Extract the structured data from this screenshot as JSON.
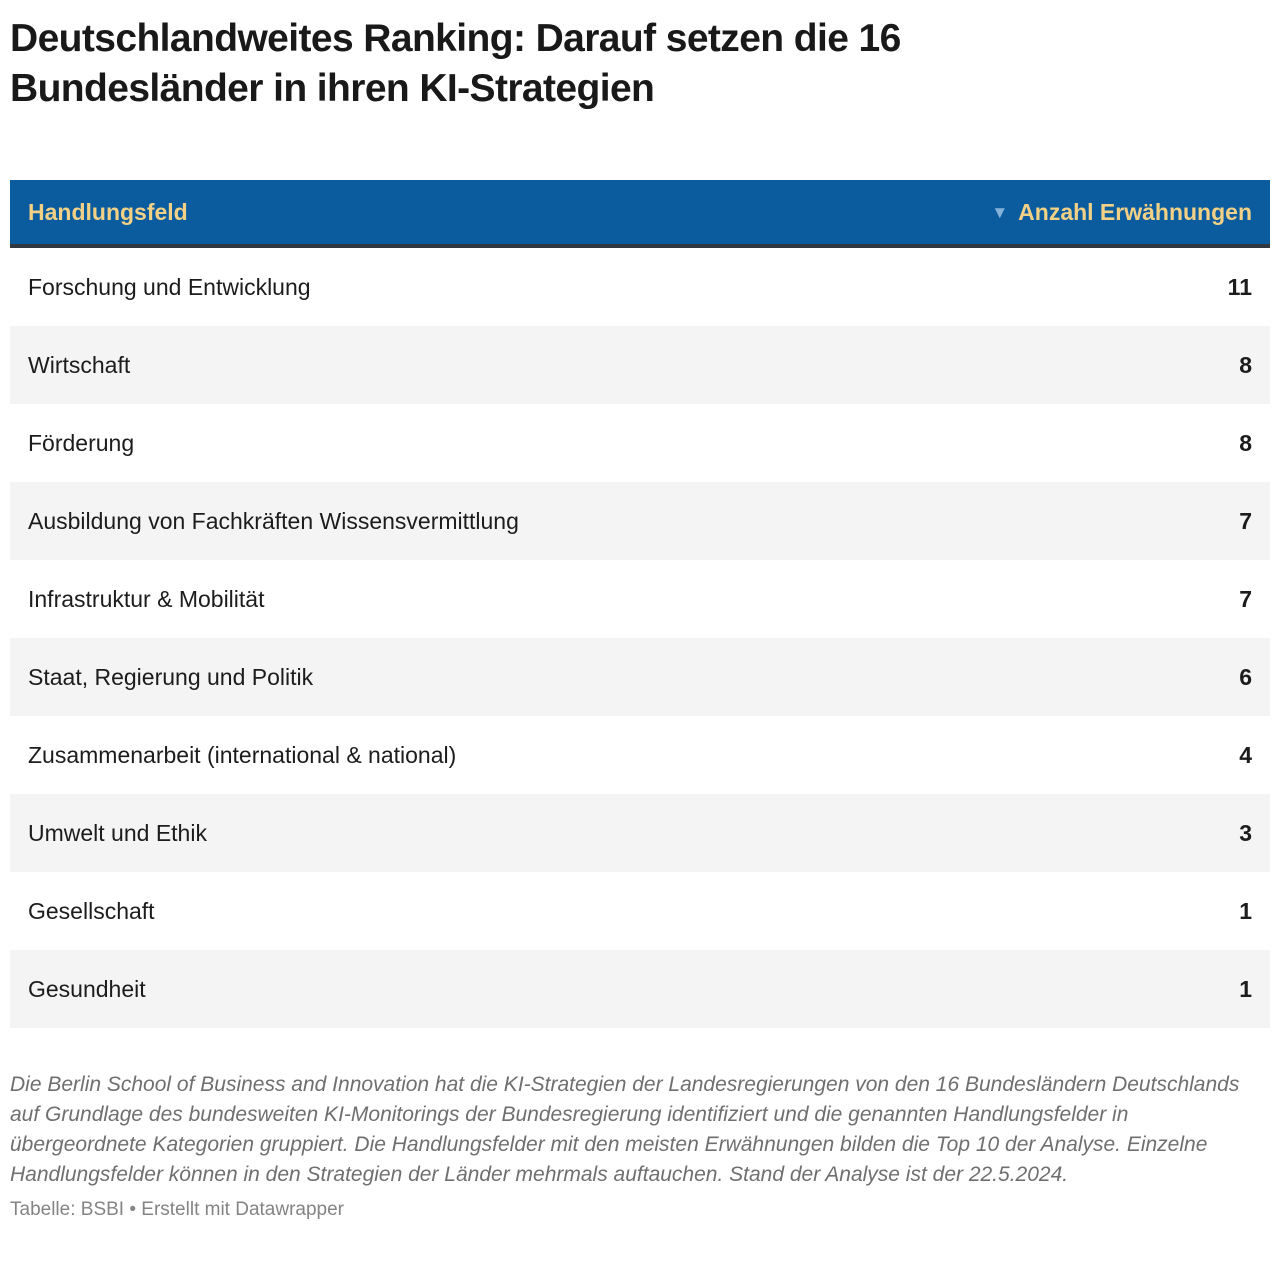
{
  "page": {
    "title": "Deutschlandweites Ranking: Darauf setzen die 16 Bundesländer in ihren KI-Strategien"
  },
  "table": {
    "header": {
      "column_field": "Handlungsfeld",
      "column_count": "Anzahl Erwähnungen",
      "sort_icon": "▼",
      "sort_direction": "descending"
    },
    "rows": [
      {
        "label": "Forschung und Entwicklung",
        "value": "11"
      },
      {
        "label": "Wirtschaft",
        "value": "8"
      },
      {
        "label": "Förderung",
        "value": "8"
      },
      {
        "label": "Ausbildung von Fachkräften Wissensvermittlung",
        "value": "7"
      },
      {
        "label": "Infrastruktur & Mobilität",
        "value": "7"
      },
      {
        "label": "Staat, Regierung und Politik",
        "value": "6"
      },
      {
        "label": "Zusammenarbeit (international & national)",
        "value": "4"
      },
      {
        "label": "Umwelt und Ethik",
        "value": "3"
      },
      {
        "label": "Gesellschaft",
        "value": "1"
      },
      {
        "label": "Gesundheit",
        "value": "1"
      }
    ]
  },
  "footer": {
    "notes": "Die Berlin School of Business and Innovation hat die KI-Strategien der Landesregierungen von den 16 Bundesländern Deutschlands auf Grundlage des bundesweiten KI-Monitorings der Bundesregierung identifiziert und die genannten Handlungsfelder in übergeordnete Kategorien gruppiert. Die Handlungsfelder mit den meisten Erwähnungen bilden die Top 10 der Analyse. Einzelne Handlungsfelder können in den Strategien der Länder mehrmals auftauchen. Stand der Analyse ist der 22.5.2024.",
    "byline": "Tabelle: BSBI • Erstellt mit Datawrapper"
  },
  "colors": {
    "header_bg": "#0b5c9e",
    "header_text": "#f2d186",
    "header_bottom_border": "#30373e",
    "sort_arrow": "#85b2d9",
    "row_alt_bg": "#f4f4f4",
    "body_text": "#1c1c1c",
    "notes_text": "#6f6f6f",
    "byline_text": "#848484"
  },
  "chart_data": {
    "type": "table",
    "title": "Deutschlandweites Ranking: Darauf setzen die 16 Bundesländer in ihren KI-Strategien",
    "columns": [
      "Handlungsfeld",
      "Anzahl Erwähnungen"
    ],
    "categories": [
      "Forschung und Entwicklung",
      "Wirtschaft",
      "Förderung",
      "Ausbildung von Fachkräften Wissensvermittlung",
      "Infrastruktur & Mobilität",
      "Staat, Regierung und Politik",
      "Zusammenarbeit (international & national)",
      "Umwelt und Ethik",
      "Gesellschaft",
      "Gesundheit"
    ],
    "values": [
      11,
      8,
      8,
      7,
      7,
      6,
      4,
      3,
      1,
      1
    ],
    "sort": "Anzahl Erwähnungen, descending",
    "notes": "Die Berlin School of Business and Innovation hat die KI-Strategien der Landesregierungen von den 16 Bundesländern Deutschlands auf Grundlage des bundesweiten KI-Monitorings der Bundesregierung identifiziert und die genannten Handlungsfelder in übergeordnete Kategorien gruppiert. Die Handlungsfelder mit den meisten Erwähnungen bilden die Top 10 der Analyse. Einzelne Handlungsfelder können in den Strategien der Länder mehrmals auftauchen. Stand der Analyse ist der 22.5.2024.",
    "source": "Tabelle: BSBI • Erstellt mit Datawrapper"
  }
}
